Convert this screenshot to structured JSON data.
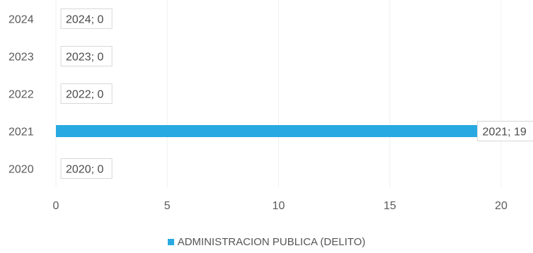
{
  "chart_data": {
    "type": "bar",
    "orientation": "horizontal",
    "categories": [
      "2020",
      "2021",
      "2022",
      "2023",
      "2024"
    ],
    "series": [
      {
        "name": "ADMINISTRACION PUBLICA (DELITO)",
        "values": [
          0,
          19,
          0,
          0,
          0
        ],
        "color": "#29a9e1"
      }
    ],
    "data_labels": [
      "2020; 0",
      "2021; 19",
      "2022; 0",
      "2023; 0",
      "2024; 0"
    ],
    "xlim": [
      0,
      20
    ],
    "xticks": [
      0,
      5,
      10,
      15,
      20
    ],
    "grid": true,
    "legend_position": "bottom"
  }
}
